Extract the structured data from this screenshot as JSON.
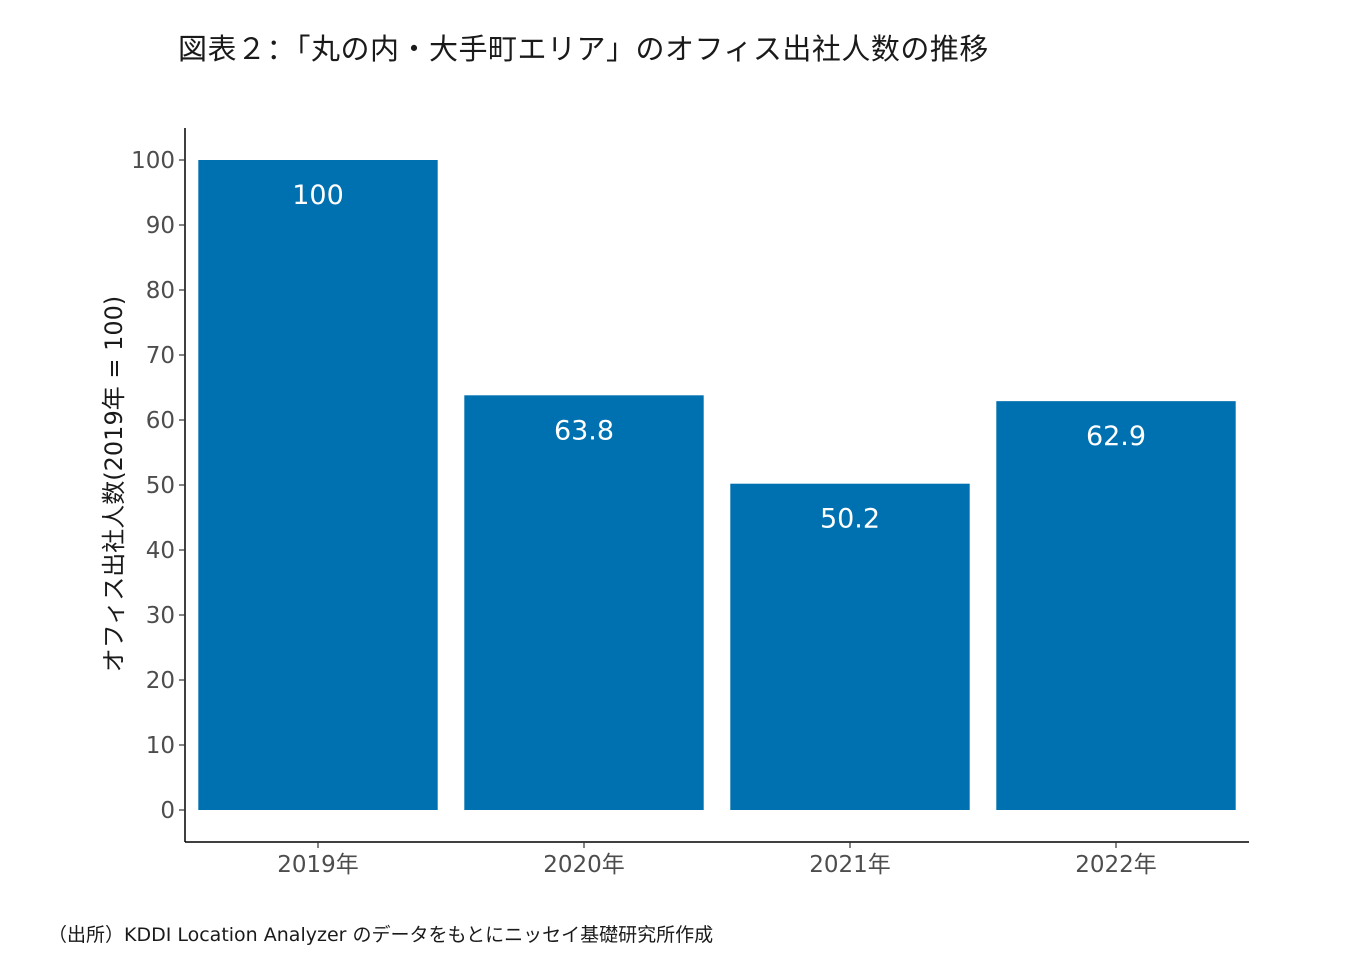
{
  "figure": {
    "title": "図表２：「丸の内・大手町エリア」のオフィス出社人数の推移",
    "source": "（出所）KDDI Location Analyzer のデータをもとにニッセイ基礎研究所作成"
  },
  "colors": {
    "bar": "#0071b0",
    "axis": "#000000",
    "tick_text": "#4d4d4d",
    "label_text": "#ffffff"
  },
  "chart_data": {
    "type": "bar",
    "title": "図表２：「丸の内・大手町エリア」のオフィス出社人数の推移",
    "xlabel": "",
    "ylabel": "オフィス出社人数(2019年 = 100)",
    "categories": [
      "2019年",
      "2020年",
      "2021年",
      "2022年"
    ],
    "values": [
      100,
      63.8,
      50.2,
      62.9
    ],
    "data_labels": [
      "100",
      "63.8",
      "50.2",
      "62.9"
    ],
    "ylim": [
      0,
      100
    ],
    "yticks": [
      0,
      10,
      20,
      30,
      40,
      50,
      60,
      70,
      80,
      90,
      100
    ],
    "grid": false,
    "legend": "none"
  }
}
